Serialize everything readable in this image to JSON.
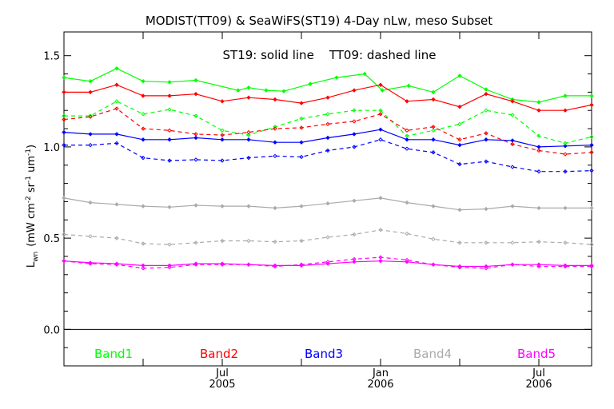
{
  "chart_data": {
    "type": "line",
    "title": "MODIST(TT09) & SeaWiFS(ST19) 4-Day nLw, meso Subset",
    "ylabel": "L_wn (mW cm^-2 sr^-1 um^-1)",
    "ylabel_parts": {
      "base": "L",
      "sub": "wn",
      "units": [
        "(mW cm",
        "-2",
        " sr",
        "-1",
        " um",
        "-1",
        ")"
      ]
    },
    "xlabel": "",
    "annotation": "ST19: solid line    TT09: dashed line",
    "ylim": [
      -0.2,
      1.63
    ],
    "xlim": [
      0,
      30
    ],
    "y_ticks": [
      {
        "value": 0.0,
        "label": "0.0"
      },
      {
        "value": 0.5,
        "label": "0.5"
      },
      {
        "value": 1.0,
        "label": "1.0"
      },
      {
        "value": 1.5,
        "label": "1.5"
      }
    ],
    "x_ticks": [
      {
        "value": 4.5,
        "major": false
      },
      {
        "value": 9,
        "major": true,
        "label_top": "Jul",
        "label_bottom": "2005"
      },
      {
        "value": 13.5,
        "major": false
      },
      {
        "value": 18,
        "major": true,
        "label_top": "Jan",
        "label_bottom": "2006"
      },
      {
        "value": 22.5,
        "major": false
      },
      {
        "value": 27,
        "major": true,
        "label_top": "Jul",
        "label_bottom": "2006"
      }
    ],
    "zero_line": 0.0,
    "x": [
      0,
      1,
      2,
      3,
      4,
      5,
      6,
      7,
      8,
      9,
      10,
      11,
      12,
      13,
      14,
      15,
      16,
      17,
      18,
      19,
      20,
      21,
      22,
      23,
      24,
      25,
      26,
      27,
      28,
      29,
      30
    ],
    "series": [
      {
        "name": "Band1",
        "sensor": "ST19",
        "dashed": false,
        "color": "#00ff00",
        "x": [
          0,
          1.5,
          3,
          4.5,
          6,
          7.5,
          9.9,
          10.5,
          11.5,
          12.5,
          14,
          15.5,
          17.1,
          18.1,
          19.6,
          21,
          22.5,
          24,
          25.5,
          27,
          28.5,
          30
        ],
        "y": [
          1.38,
          1.36,
          1.43,
          1.36,
          1.355,
          1.365,
          1.31,
          1.325,
          1.31,
          1.305,
          1.345,
          1.38,
          1.4,
          1.31,
          1.335,
          1.3,
          1.39,
          1.315,
          1.26,
          1.245,
          1.28,
          1.28
        ]
      },
      {
        "name": "Band2",
        "sensor": "ST19",
        "dashed": false,
        "color": "#ff0000",
        "x": [
          0,
          1.5,
          3,
          4.5,
          6,
          7.5,
          9,
          10.5,
          12,
          13.5,
          15,
          16.5,
          18,
          19.5,
          21,
          22.5,
          24,
          25.5,
          27,
          28.5,
          30
        ],
        "y": [
          1.3,
          1.3,
          1.34,
          1.28,
          1.28,
          1.29,
          1.25,
          1.27,
          1.26,
          1.24,
          1.27,
          1.31,
          1.34,
          1.25,
          1.26,
          1.22,
          1.29,
          1.25,
          1.2,
          1.2,
          1.23
        ]
      },
      {
        "name": "Band3",
        "sensor": "ST19",
        "dashed": false,
        "color": "#0000ff",
        "x": [
          0,
          1.5,
          3,
          4.5,
          6,
          7.5,
          9,
          10.5,
          12,
          13.5,
          15,
          16.5,
          18,
          19.5,
          21,
          22.5,
          24,
          25.5,
          27,
          28.5,
          30
        ],
        "y": [
          1.08,
          1.07,
          1.07,
          1.04,
          1.04,
          1.05,
          1.04,
          1.04,
          1.025,
          1.025,
          1.05,
          1.07,
          1.095,
          1.04,
          1.04,
          1.01,
          1.04,
          1.035,
          1.0,
          1.005,
          1.01
        ]
      },
      {
        "name": "Band4",
        "sensor": "ST19",
        "dashed": false,
        "color": "#aaaaaa",
        "x": [
          0,
          1.5,
          3,
          4.5,
          6,
          7.5,
          9,
          10.5,
          12,
          13.5,
          15,
          16.5,
          18,
          19.5,
          21,
          22.5,
          24,
          25.5,
          27,
          28.5,
          30
        ],
        "y": [
          0.72,
          0.695,
          0.685,
          0.675,
          0.67,
          0.68,
          0.675,
          0.675,
          0.665,
          0.675,
          0.69,
          0.705,
          0.72,
          0.695,
          0.675,
          0.655,
          0.66,
          0.675,
          0.665,
          0.665,
          0.665
        ]
      },
      {
        "name": "Band5",
        "sensor": "ST19",
        "dashed": false,
        "color": "#ff00ff",
        "x": [
          0,
          1.5,
          3,
          4.5,
          6,
          7.5,
          9,
          10.5,
          12,
          13.5,
          15,
          16.5,
          18,
          19.5,
          21,
          22.5,
          24,
          25.5,
          27,
          28.5,
          30
        ],
        "y": [
          0.375,
          0.365,
          0.36,
          0.35,
          0.35,
          0.36,
          0.36,
          0.355,
          0.35,
          0.35,
          0.36,
          0.37,
          0.375,
          0.37,
          0.355,
          0.345,
          0.345,
          0.355,
          0.355,
          0.35,
          0.35
        ]
      },
      {
        "name": "Band1",
        "sensor": "TT09",
        "dashed": true,
        "color": "#00ff00",
        "x": [
          0,
          1.5,
          3,
          4.5,
          6,
          7.5,
          9,
          10.5,
          12,
          13.5,
          15,
          16.5,
          18,
          19.5,
          21,
          22.5,
          24,
          25.5,
          27,
          28.5,
          30
        ],
        "y": [
          1.17,
          1.17,
          1.25,
          1.18,
          1.205,
          1.17,
          1.09,
          1.065,
          1.11,
          1.155,
          1.18,
          1.2,
          1.2,
          1.06,
          1.09,
          1.125,
          1.2,
          1.175,
          1.06,
          1.02,
          1.055
        ]
      },
      {
        "name": "Band2",
        "sensor": "TT09",
        "dashed": true,
        "color": "#ff0000",
        "x": [
          0,
          1.5,
          3,
          4.5,
          6,
          7.5,
          9,
          10.5,
          12,
          13.5,
          15,
          16.5,
          18,
          19.5,
          21,
          22.5,
          24,
          25.5,
          27,
          28.5,
          30
        ],
        "y": [
          1.15,
          1.165,
          1.21,
          1.1,
          1.09,
          1.07,
          1.065,
          1.08,
          1.1,
          1.105,
          1.125,
          1.14,
          1.18,
          1.09,
          1.11,
          1.04,
          1.075,
          1.015,
          0.98,
          0.96,
          0.97
        ]
      },
      {
        "name": "Band3",
        "sensor": "TT09",
        "dashed": true,
        "color": "#0000ff",
        "x": [
          0,
          1.5,
          3,
          4.5,
          6,
          7.5,
          9,
          10.5,
          12,
          13.5,
          15,
          16.5,
          18,
          19.5,
          21,
          22.5,
          24,
          25.5,
          27,
          28.5,
          30
        ],
        "y": [
          1.01,
          1.01,
          1.02,
          0.94,
          0.925,
          0.93,
          0.925,
          0.94,
          0.95,
          0.945,
          0.98,
          1.0,
          1.04,
          0.99,
          0.97,
          0.905,
          0.92,
          0.89,
          0.865,
          0.865,
          0.87
        ]
      },
      {
        "name": "Band4",
        "sensor": "TT09",
        "dashed": true,
        "color": "#aaaaaa",
        "x": [
          0,
          1.5,
          3,
          4.5,
          6,
          7.5,
          9,
          10.5,
          12,
          13.5,
          15,
          16.5,
          18,
          19.5,
          21,
          22.5,
          24,
          25.5,
          27,
          28.5,
          30
        ],
        "y": [
          0.52,
          0.51,
          0.5,
          0.47,
          0.465,
          0.475,
          0.485,
          0.485,
          0.48,
          0.485,
          0.505,
          0.52,
          0.545,
          0.525,
          0.495,
          0.475,
          0.475,
          0.475,
          0.48,
          0.475,
          0.465
        ]
      },
      {
        "name": "Band5",
        "sensor": "TT09",
        "dashed": true,
        "color": "#ff00ff",
        "x": [
          0,
          1.5,
          3,
          4.5,
          6,
          7.5,
          9,
          10.5,
          12,
          13.5,
          15,
          16.5,
          18,
          19.5,
          21,
          22.5,
          24,
          25.5,
          27,
          28.5,
          30
        ],
        "y": [
          0.375,
          0.36,
          0.355,
          0.335,
          0.34,
          0.355,
          0.355,
          0.355,
          0.345,
          0.355,
          0.37,
          0.385,
          0.395,
          0.38,
          0.355,
          0.34,
          0.335,
          0.355,
          0.345,
          0.345,
          0.345
        ]
      }
    ],
    "legend": [
      {
        "label": "Band1",
        "color": "#00ff00"
      },
      {
        "label": "Band2",
        "color": "#ff0000"
      },
      {
        "label": "Band3",
        "color": "#0000ff"
      },
      {
        "label": "Band4",
        "color": "#aaaaaa"
      },
      {
        "label": "Band5",
        "color": "#ff00ff"
      }
    ],
    "legend_placement": "bottom-inside",
    "grid": false
  }
}
